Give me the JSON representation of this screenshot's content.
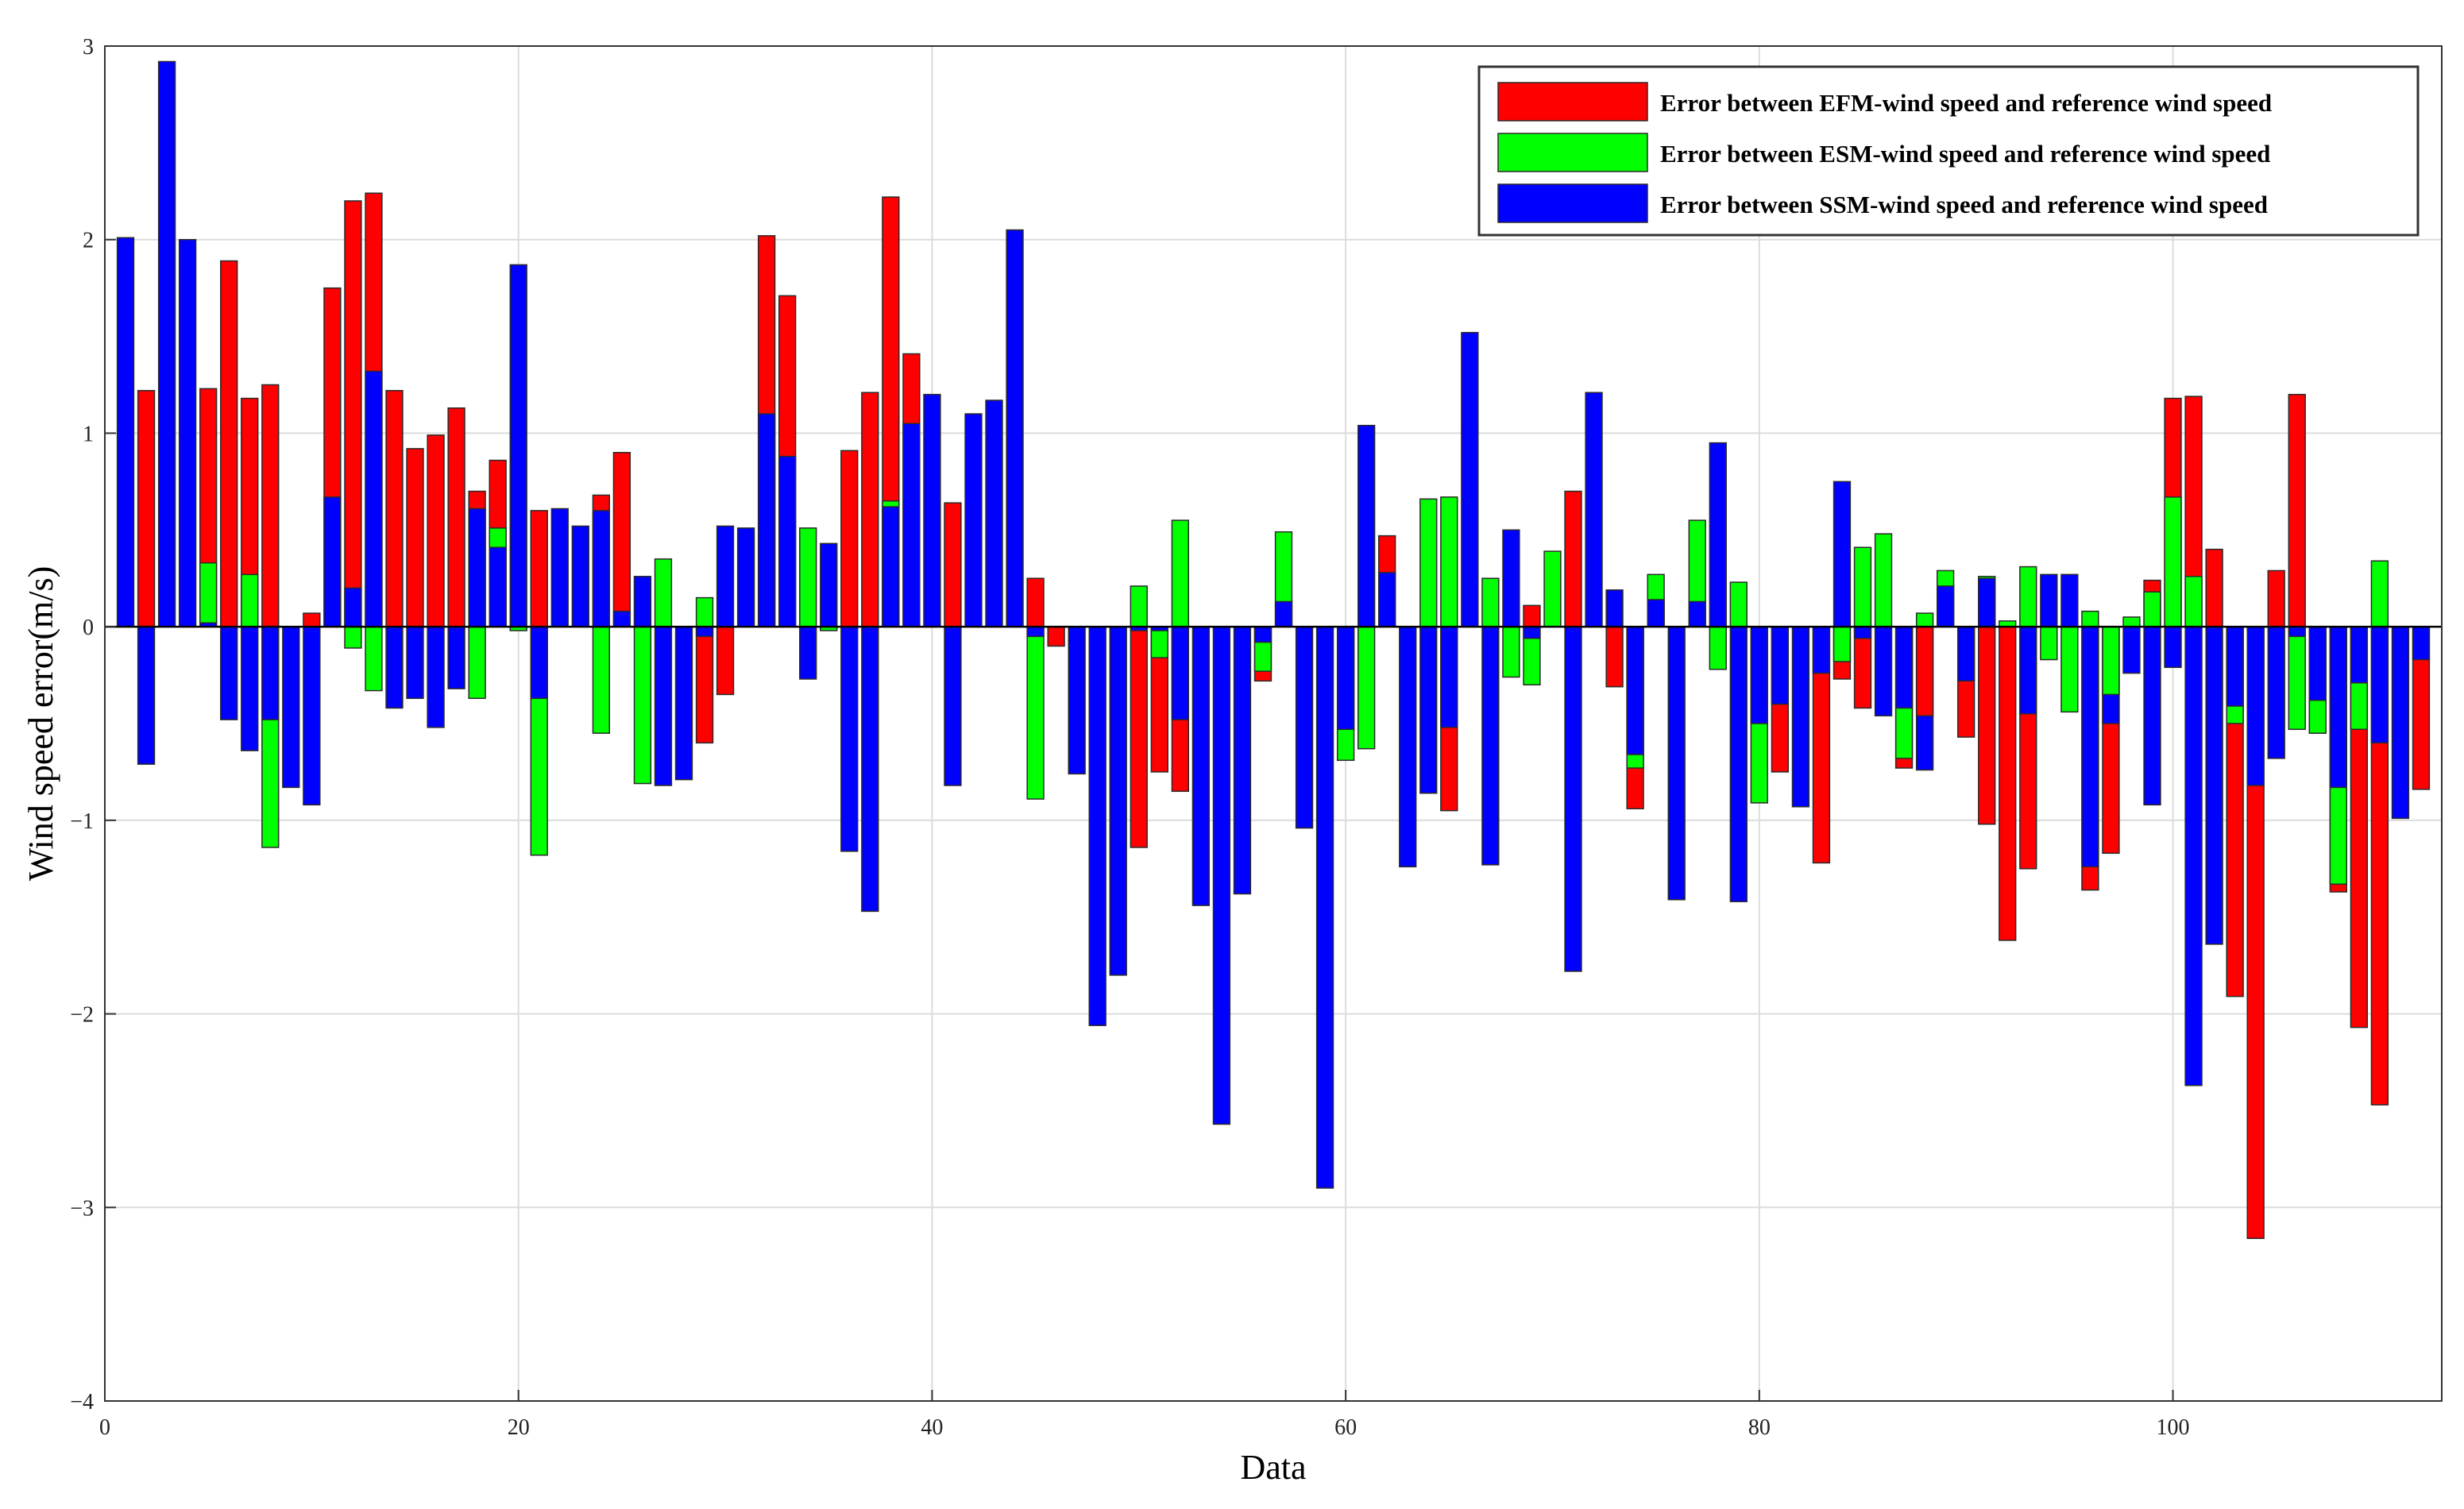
{
  "chart_data": {
    "type": "bar",
    "stacked_overlay": true,
    "xlabel": "Data",
    "ylabel": "Wind speed error(m/s)",
    "xlim": [
      0,
      113
    ],
    "ylim": [
      -4,
      3
    ],
    "xticks": [
      0,
      20,
      40,
      60,
      80,
      100
    ],
    "yticks": [
      -4,
      -3,
      -2,
      -1,
      0,
      1,
      2,
      3
    ],
    "grid": true,
    "legend_position": "top-right",
    "x": [
      1,
      2,
      3,
      4,
      5,
      6,
      7,
      8,
      9,
      10,
      11,
      12,
      13,
      14,
      15,
      16,
      17,
      18,
      19,
      20,
      21,
      22,
      23,
      24,
      25,
      26,
      27,
      28,
      29,
      30,
      31,
      32,
      33,
      34,
      35,
      36,
      37,
      38,
      39,
      40,
      41,
      42,
      43,
      44,
      45,
      46,
      47,
      48,
      49,
      50,
      51,
      52,
      53,
      54,
      55,
      56,
      57,
      58,
      59,
      60,
      61,
      62,
      63,
      64,
      65,
      66,
      67,
      68,
      69,
      70,
      71,
      72,
      73,
      74,
      75,
      76,
      77,
      78,
      79,
      80,
      81,
      82,
      83,
      84,
      85,
      86,
      87,
      88,
      89,
      90,
      91,
      92,
      93,
      94,
      95,
      96,
      97,
      98,
      99,
      100,
      101,
      102,
      103,
      104,
      105,
      106,
      107,
      108,
      109,
      110,
      111,
      112
    ],
    "series": [
      {
        "name": "Error between EFM-wind speed and reference wind speed",
        "color": "#ff0000",
        "values": [
          0,
          1.22,
          0,
          0,
          1.23,
          1.89,
          1.18,
          1.25,
          0,
          0.07,
          1.75,
          2.2,
          2.24,
          1.22,
          0.92,
          0.99,
          1.13,
          0.7,
          0.86,
          0,
          0.6,
          0,
          0,
          0.68,
          0.9,
          0,
          0,
          0,
          -0.6,
          -0.35,
          0,
          2.02,
          1.71,
          0,
          0,
          0.91,
          1.21,
          2.22,
          1.41,
          0,
          0.64,
          0,
          0,
          0,
          0.25,
          -0.1,
          0,
          0,
          0,
          -1.14,
          -0.75,
          -0.85,
          0,
          0,
          0,
          -0.28,
          0,
          0,
          0,
          0,
          0,
          0.47,
          0,
          0,
          -0.95,
          0,
          0,
          0,
          0.11,
          0,
          0.7,
          0,
          -0.31,
          -0.94,
          0,
          0,
          0,
          0,
          0,
          0,
          -0.75,
          0,
          -1.22,
          -0.27,
          -0.42,
          0,
          -0.73,
          -0.46,
          0,
          -0.57,
          -1.02,
          -1.62,
          -1.25,
          0,
          0,
          -1.36,
          -1.17,
          0,
          0.24,
          1.18,
          1.19,
          0.4,
          -1.91,
          -3.16,
          0.29,
          1.2,
          -0.55,
          -1.37,
          -2.07,
          -2.47,
          0,
          -0.84
        ]
      },
      {
        "name": "Error between ESM-wind speed and reference wind speed",
        "color": "#00ff00",
        "values": [
          0,
          0,
          0,
          0,
          0.33,
          0,
          0.27,
          -1.14,
          0,
          0,
          0,
          -0.11,
          -0.33,
          0,
          0,
          0,
          0,
          -0.37,
          0.51,
          -0.02,
          -1.18,
          0,
          0,
          -0.55,
          0,
          -0.81,
          0.35,
          0,
          0.15,
          0,
          0,
          0,
          0,
          0.51,
          -0.02,
          0,
          0,
          0.65,
          0,
          0,
          0,
          0,
          0,
          0,
          -0.89,
          0,
          0,
          0,
          0,
          0.21,
          -0.16,
          0.55,
          0,
          0,
          0,
          -0.23,
          0.49,
          0,
          0,
          -0.69,
          -0.63,
          0,
          0,
          0.66,
          0.67,
          0,
          0.25,
          -0.26,
          -0.3,
          0.39,
          0,
          0,
          0,
          -0.73,
          0.27,
          0,
          0.55,
          -0.22,
          0.23,
          -0.91,
          0,
          0,
          0,
          -0.18,
          0.41,
          0.48,
          -0.68,
          0.07,
          0.29,
          0,
          0.26,
          0.03,
          0.31,
          -0.17,
          -0.44,
          0.08,
          -0.35,
          0.05,
          0.18,
          0.67,
          0.26,
          0,
          -0.5,
          0,
          0,
          -0.53,
          -0.55,
          -1.33,
          -0.53,
          0.34,
          0,
          0
        ]
      },
      {
        "name": "Error between SSM-wind speed and reference wind speed",
        "color": "#0000ff",
        "values": [
          2.01,
          -0.71,
          2.92,
          2,
          0.02,
          -0.48,
          -0.64,
          -0.48,
          -0.83,
          -0.92,
          0.67,
          0.2,
          1.32,
          -0.42,
          -0.37,
          -0.52,
          -0.32,
          0.61,
          0.41,
          1.87,
          -0.37,
          0.61,
          0.52,
          0.6,
          0.08,
          0.26,
          -0.82,
          -0.79,
          -0.05,
          0.52,
          0.51,
          1.1,
          0.88,
          -0.27,
          0.43,
          -1.16,
          -1.47,
          0.62,
          1.05,
          1.2,
          -0.82,
          1.1,
          1.17,
          2.05,
          -0.05,
          0,
          -0.76,
          -2.06,
          -1.8,
          -0.02,
          -0.02,
          -0.48,
          -1.44,
          -2.57,
          -1.38,
          -0.08,
          0.13,
          -1.04,
          -2.9,
          -0.53,
          1.04,
          0.28,
          -1.24,
          -0.86,
          -0.52,
          1.52,
          -1.23,
          0.5,
          -0.06,
          0,
          -1.78,
          1.21,
          0.19,
          -0.66,
          0.14,
          -1.41,
          0.13,
          0.95,
          -1.42,
          -0.5,
          -0.4,
          -0.93,
          -0.24,
          0.75,
          -0.06,
          -0.46,
          -0.42,
          -0.74,
          0.21,
          -0.28,
          0.25,
          0,
          -0.45,
          0.27,
          0.27,
          -1.24,
          -0.5,
          -0.24,
          -0.92,
          -0.21,
          -2.37,
          -1.64,
          -0.41,
          -0.82,
          -0.68,
          -0.05,
          -0.38,
          -0.83,
          -0.29,
          -0.6,
          -0.99,
          -0.17
        ]
      }
    ]
  }
}
